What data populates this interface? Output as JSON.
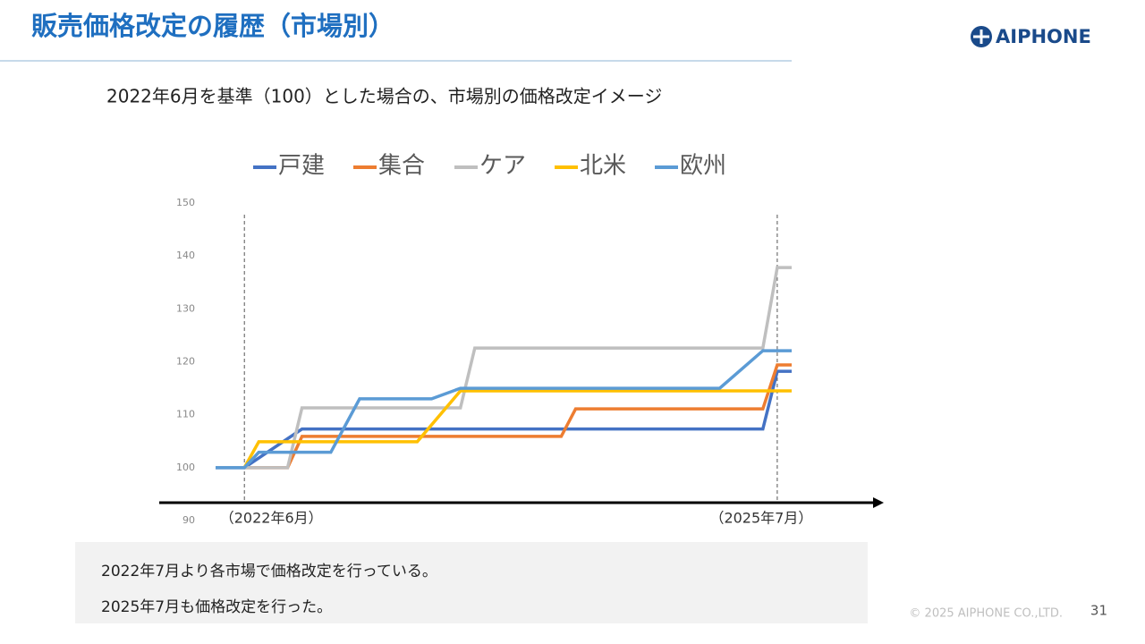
{
  "header": {
    "title": "販売価格改定の履歴（市場別）",
    "logo": "AIPHONE"
  },
  "chart_data": {
    "type": "line",
    "subtitle": "2022年6月を基準（100）とした場合の、市場別の価格改定イメージ",
    "xlim": [
      -2,
      38
    ],
    "ylim": [
      90,
      150
    ],
    "yticks": [
      90,
      100,
      110,
      120,
      130,
      140,
      150
    ],
    "legend": "top",
    "annotations": [
      {
        "x": 0,
        "text": "（2022年6月）"
      },
      {
        "x": 37,
        "text": "（2025年7月）"
      }
    ],
    "series": [
      {
        "name": "戸建",
        "color": "#4472c4",
        "x": [
          -2,
          0,
          4,
          36,
          37,
          38
        ],
        "values": [
          100,
          100,
          107.3,
          107.3,
          118.2,
          118.2
        ]
      },
      {
        "name": "集合",
        "color": "#ed7d31",
        "x": [
          0,
          3,
          4,
          22,
          23,
          36,
          37,
          38
        ],
        "values": [
          100,
          100,
          105.9,
          105.9,
          111.1,
          111.1,
          119.4,
          119.4
        ]
      },
      {
        "name": "ケア",
        "color": "#bfbfbf",
        "x": [
          -2,
          3,
          4,
          15,
          16,
          36,
          37,
          38
        ],
        "values": [
          100,
          100,
          111.3,
          111.3,
          122.6,
          122.6,
          137.8,
          137.8
        ]
      },
      {
        "name": "北米",
        "color": "#ffc000",
        "x": [
          0,
          1,
          12,
          15,
          38
        ],
        "values": [
          100,
          104.9,
          104.9,
          114.5,
          114.5
        ]
      },
      {
        "name": "欧州",
        "color": "#5b9bd5",
        "x": [
          -2,
          0,
          1,
          6,
          8,
          13,
          15,
          33,
          36,
          38
        ],
        "values": [
          100,
          100,
          102.9,
          102.9,
          113,
          113,
          115,
          115,
          122.1,
          122.1
        ]
      }
    ]
  },
  "notes": [
    "2022年7月より各市場で価格改定を行っている。",
    "2025年7月も価格改定を行った。"
  ],
  "footer": {
    "copyright": "© 2025 AIPHONE CO.,LTD.",
    "page": "31"
  }
}
